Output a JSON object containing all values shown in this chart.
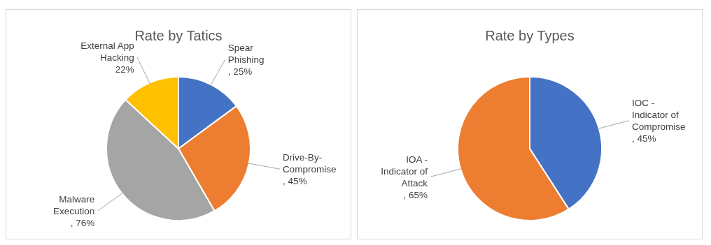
{
  "chart_data": [
    {
      "type": "pie",
      "title": "Rate by Tatics",
      "categories": [
        "Spear Phishing",
        "Drive-By-Compromise",
        "Malware Execution",
        "External App Hacking"
      ],
      "values": [
        25,
        45,
        76,
        22
      ],
      "value_labels": [
        ", 25%",
        ", 45%",
        ", 76%",
        "22%"
      ],
      "colors": [
        "#4472c4",
        "#ed7d31",
        "#a5a5a5",
        "#ffc000"
      ]
    },
    {
      "type": "pie",
      "title": "Rate by Types",
      "categories": [
        "IOC - Indicator of Compromise",
        "IOA - Indicator of Attack"
      ],
      "values": [
        45,
        65
      ],
      "value_labels": [
        ", 45%",
        ", 65%"
      ],
      "colors": [
        "#4472c4",
        "#ed7d31"
      ]
    }
  ]
}
